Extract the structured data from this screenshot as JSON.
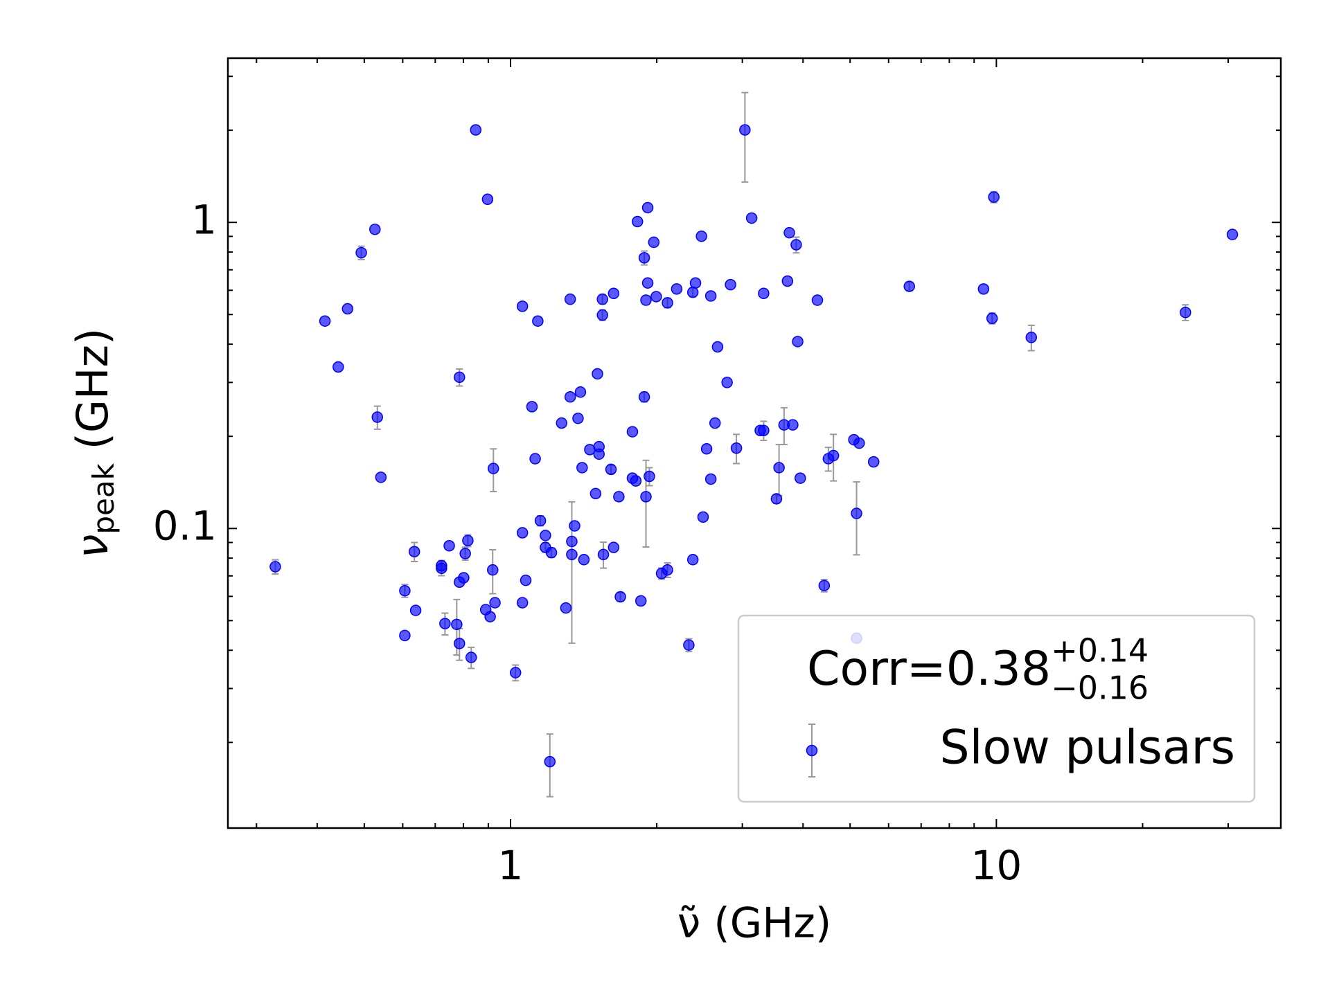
{
  "chart_data": {
    "type": "scatter",
    "xlabel": "ν̃ (GHz)",
    "ylabel": {
      "symbol": "ν",
      "subscript": "peak",
      "unit": "(GHz)"
    },
    "annotation": {
      "text": "Corr=0.38",
      "upper": "+0.14",
      "lower": "−0.16"
    },
    "xscale": "log",
    "yscale": "log",
    "xlim": [
      0.262,
      38.5
    ],
    "ylim": [
      0.0105,
      3.44
    ],
    "xticks": [
      1,
      10
    ],
    "yticks": [
      0.1,
      1
    ],
    "xminorticks": [
      0.3,
      0.4,
      0.5,
      0.6,
      0.7,
      0.8,
      0.9,
      2,
      3,
      4,
      5,
      6,
      7,
      8,
      9,
      20,
      30
    ],
    "yminorticks": [
      0.02,
      0.03,
      0.04,
      0.05,
      0.06,
      0.07,
      0.08,
      0.09,
      0.2,
      0.3,
      0.4,
      0.5,
      0.6,
      0.7,
      0.8,
      0.9,
      2,
      3
    ],
    "legend": "lower right",
    "series": [
      {
        "name": "Slow pulsars",
        "color": "#0000ff",
        "errorcolor": "#999999",
        "x": [
          0.328,
          0.415,
          0.442,
          0.462,
          0.493,
          0.526,
          0.532,
          0.541,
          0.606,
          0.606,
          0.634,
          0.638,
          0.721,
          0.721,
          0.733,
          0.748,
          0.775,
          0.785,
          0.785,
          0.785,
          0.801,
          0.807,
          0.817,
          0.83,
          0.848,
          0.889,
          0.897,
          0.908,
          0.919,
          0.922,
          0.929,
          1.024,
          1.058,
          1.058,
          1.058,
          1.075,
          1.107,
          1.124,
          1.138,
          1.152,
          1.18,
          1.18,
          1.205,
          1.214,
          1.274,
          1.3,
          1.327,
          1.327,
          1.337,
          1.337,
          1.355,
          1.377,
          1.393,
          1.404,
          1.416,
          1.456,
          1.497,
          1.51,
          1.521,
          1.521,
          1.546,
          1.546,
          1.553,
          1.61,
          1.63,
          1.63,
          1.671,
          1.683,
          1.782,
          1.782,
          1.811,
          1.825,
          1.855,
          1.885,
          1.885,
          1.9,
          1.9,
          1.916,
          1.916,
          1.931,
          1.972,
          1.995,
          2.046,
          2.104,
          2.104,
          2.198,
          2.328,
          2.373,
          2.373,
          2.403,
          2.472,
          2.491,
          2.533,
          2.584,
          2.584,
          2.636,
          2.668,
          2.791,
          2.837,
          2.917,
          3.037,
          3.136,
          3.266,
          3.319,
          3.319,
          3.527,
          3.57,
          3.656,
          3.716,
          3.749,
          3.81,
          3.873,
          3.9,
          3.948,
          4.282,
          4.422,
          4.51,
          4.62,
          5.09,
          5.155,
          5.155,
          5.22,
          5.59,
          6.62,
          9.41,
          9.8,
          9.88,
          11.8,
          24.5,
          30.6
        ],
        "values": [
          0.075,
          0.476,
          0.337,
          0.522,
          0.796,
          0.949,
          0.231,
          0.147,
          0.0626,
          0.0447,
          0.084,
          0.054,
          0.0741,
          0.0756,
          0.0489,
          0.0878,
          0.0486,
          0.312,
          0.0668,
          0.0421,
          0.069,
          0.0828,
          0.0913,
          0.0379,
          2.005,
          0.0543,
          1.19,
          0.0515,
          0.0732,
          0.157,
          0.0572,
          0.0338,
          0.532,
          0.0968,
          0.0572,
          0.0677,
          0.25,
          0.169,
          0.476,
          0.106,
          0.0949,
          0.0867,
          0.0173,
          0.0834,
          0.221,
          0.055,
          0.561,
          0.269,
          0.0822,
          0.0907,
          0.102,
          0.229,
          0.279,
          0.158,
          0.0791,
          0.181,
          0.13,
          0.32,
          0.175,
          0.185,
          0.561,
          0.498,
          0.0822,
          0.156,
          0.586,
          0.0867,
          0.127,
          0.0598,
          0.207,
          0.146,
          0.143,
          1.006,
          0.058,
          0.766,
          0.269,
          0.557,
          0.127,
          1.117,
          0.634,
          0.148,
          0.861,
          0.572,
          0.0713,
          0.546,
          0.0732,
          0.606,
          0.0416,
          0.591,
          0.0791,
          0.634,
          0.901,
          0.109,
          0.182,
          0.575,
          0.145,
          0.221,
          0.392,
          0.3,
          0.626,
          0.183,
          2.005,
          1.033,
          0.209,
          0.586,
          0.209,
          0.125,
          0.158,
          0.218,
          0.643,
          0.925,
          0.218,
          0.845,
          0.408,
          0.146,
          0.557,
          0.0651,
          0.169,
          0.173,
          0.195,
          0.112,
          0.0438,
          0.19,
          0.165,
          0.618,
          0.606,
          0.486,
          1.21,
          0.421,
          0.508,
          0.913
        ],
        "yerr": [
          0.004,
          0,
          0,
          0,
          0.04,
          0,
          0.02,
          0,
          0.003,
          0,
          0.006,
          0,
          0.004,
          0.003,
          0.004,
          0,
          0.01,
          0.02,
          0,
          0.005,
          0,
          0.004,
          0.004,
          0.003,
          0,
          0,
          0,
          0,
          0.012,
          0.025,
          0,
          0.002,
          0,
          0,
          0,
          0,
          0,
          0,
          0,
          0.004,
          0,
          0.003,
          0.004,
          0.003,
          0,
          0,
          0,
          0,
          0.04,
          0,
          0,
          0,
          0,
          0,
          0,
          0,
          0,
          0,
          0,
          0,
          0.02,
          0.02,
          0.008,
          0.005,
          0,
          0,
          0,
          0.002,
          0,
          0,
          0,
          0,
          0,
          0.04,
          0.01,
          0,
          0.04,
          0,
          0,
          0.01,
          0,
          0,
          0.003,
          0.02,
          0.004,
          0,
          0.002,
          0.02,
          0,
          0,
          0,
          0,
          0,
          0,
          0,
          0,
          0,
          0,
          0,
          0.02,
          0.65,
          0,
          0,
          0,
          0.015,
          0.004,
          0.03,
          0.03,
          0,
          0,
          0,
          0.05,
          0,
          0,
          0,
          0.003,
          0.015,
          0.03,
          0,
          0.03,
          0,
          0,
          0,
          0.02,
          0,
          0.02,
          0.05,
          0.04,
          0.03,
          0
        ]
      }
    ]
  }
}
